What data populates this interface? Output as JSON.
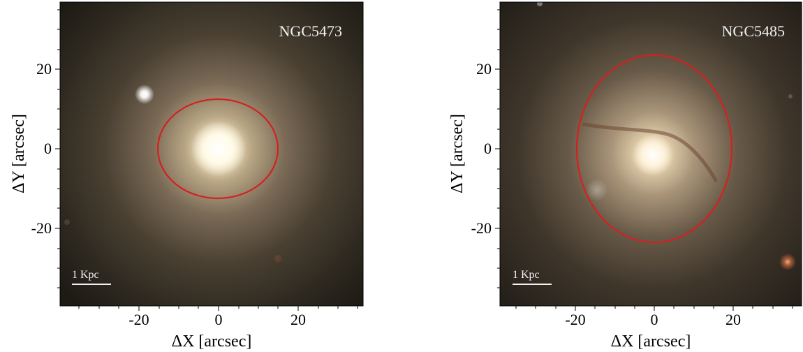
{
  "panels": [
    {
      "galaxy_name": "NGC5473",
      "scale_bar_label": "1 Kpc",
      "x_axis_title": "ΔX [arcsec]",
      "y_axis_title": "ΔY [arcsec]",
      "x_tick_labels": [
        "-20",
        "0",
        "20"
      ],
      "y_tick_labels": [
        "20",
        "0",
        "-20"
      ],
      "ellipse_color": "#d42020",
      "ellipse_semi_axes_arcsec": [
        15,
        12.5
      ],
      "ellipse_center_arcsec": [
        0,
        0
      ]
    },
    {
      "galaxy_name": "NGC5485",
      "scale_bar_label": "1 Kpc",
      "x_axis_title": "ΔX [arcsec]",
      "y_axis_title": "ΔY [arcsec]",
      "x_tick_labels": [
        "-20",
        "0",
        "20"
      ],
      "y_tick_labels": [
        "20",
        "0",
        "-20"
      ],
      "ellipse_color": "#d42020",
      "ellipse_semi_axes_arcsec": [
        19.5,
        23.5
      ],
      "ellipse_center_arcsec": [
        0,
        0
      ]
    }
  ]
}
